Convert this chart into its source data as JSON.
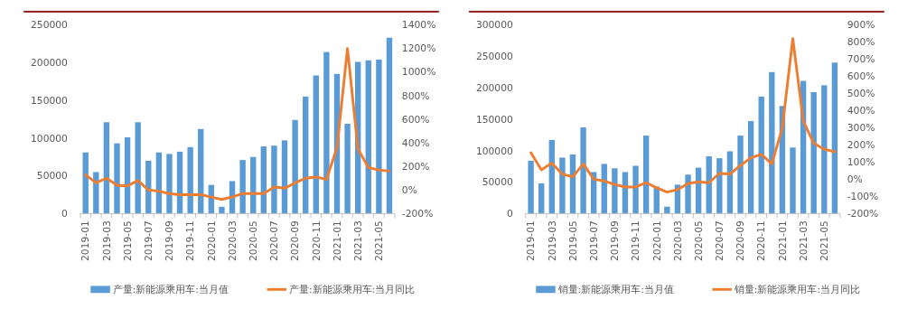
{
  "chart_data": [
    {
      "type": "bar",
      "categories": [
        "2019-01",
        null,
        "2019-03",
        null,
        "2019-05",
        null,
        "2019-07",
        null,
        "2019-09",
        null,
        "2019-11",
        null,
        "2020-01",
        null,
        "2020-03",
        null,
        "2020-05",
        null,
        "2020-07",
        null,
        "2020-09",
        null,
        "2020-11",
        null,
        "2021-01",
        null,
        "2021-03",
        null,
        "2021-05",
        null
      ],
      "series": [
        {
          "name": "产量:新能源乘用车:当月值",
          "color": "#5b9bd5",
          "values": [
            81000,
            55000,
            121000,
            93000,
            101000,
            121000,
            70000,
            81000,
            79000,
            82000,
            88000,
            112000,
            38000,
            9000,
            43000,
            71000,
            75000,
            89000,
            90000,
            97000,
            124000,
            155000,
            183000,
            214000,
            185000,
            119000,
            201000,
            203000,
            204000,
            233000
          ]
        },
        {
          "name": "产量:新能源乘用车:当月同比",
          "type": "line",
          "axis": "y2",
          "color": "#ed7d31",
          "values": [
            130,
            60,
            100,
            40,
            35,
            80,
            0,
            -10,
            -30,
            -40,
            -40,
            -40,
            -60,
            -80,
            -60,
            -30,
            -30,
            -30,
            25,
            15,
            60,
            100,
            110,
            90,
            360,
            1200,
            350,
            190,
            170,
            160
          ]
        }
      ],
      "ylim": [
        0,
        250000
      ],
      "yticks": [
        0,
        50000,
        100000,
        150000,
        200000,
        250000
      ],
      "y2lim": [
        -200,
        1400
      ],
      "y2ticks": [
        {
          "value": -200,
          "label": "-200%"
        },
        {
          "value": 0,
          "label": "0%"
        },
        {
          "value": 200,
          "label": "200%"
        },
        {
          "value": 400,
          "label": "400%"
        },
        {
          "value": 600,
          "label": "600%"
        },
        {
          "value": 800,
          "label": "800%"
        },
        {
          "value": 1000,
          "label": "1000%"
        },
        {
          "value": 1200,
          "label": "1200%"
        },
        {
          "value": 1400,
          "label": "1400%"
        }
      ],
      "legend": "bottom"
    },
    {
      "type": "bar",
      "categories": [
        "2019-01",
        null,
        "2019-03",
        null,
        "2019-05",
        null,
        "2019-07",
        null,
        "2019-09",
        null,
        "2019-11",
        null,
        "2020-01",
        null,
        "2020-03",
        null,
        "2020-05",
        null,
        "2020-07",
        null,
        "2020-09",
        null,
        "2020-11",
        null,
        "2021-01",
        null,
        "2021-03",
        null,
        "2021-05",
        null
      ],
      "series": [
        {
          "name": "销量:新能源乘用车:当月值",
          "color": "#5b9bd5",
          "values": [
            84000,
            48000,
            117000,
            89000,
            94000,
            137000,
            66000,
            79000,
            72000,
            66000,
            76000,
            124000,
            43000,
            11000,
            46000,
            62000,
            73000,
            91000,
            88000,
            99000,
            124000,
            147000,
            186000,
            225000,
            171000,
            105000,
            211000,
            193000,
            204000,
            240000
          ]
        },
        {
          "name": "销量:新能源乘用车:当月同比",
          "type": "line",
          "axis": "y2",
          "color": "#ed7d31",
          "values": [
            155,
            55,
            95,
            30,
            15,
            90,
            0,
            -10,
            -30,
            -45,
            -45,
            -20,
            -50,
            -75,
            -60,
            -25,
            -15,
            -20,
            35,
            30,
            80,
            125,
            145,
            90,
            300,
            820,
            340,
            210,
            175,
            160
          ]
        }
      ],
      "ylim": [
        0,
        300000
      ],
      "yticks": [
        0,
        50000,
        100000,
        150000,
        200000,
        250000,
        300000
      ],
      "y2lim": [
        -200,
        900
      ],
      "y2ticks": [
        {
          "value": -200,
          "label": "-200%"
        },
        {
          "value": -100,
          "label": "-100%"
        },
        {
          "value": 0,
          "label": "0%"
        },
        {
          "value": 100,
          "label": "100%"
        },
        {
          "value": 200,
          "label": "200%"
        },
        {
          "value": 300,
          "label": "300%"
        },
        {
          "value": 400,
          "label": "400%"
        },
        {
          "value": 500,
          "label": "500%"
        },
        {
          "value": 600,
          "label": "600%"
        },
        {
          "value": 700,
          "label": "700%"
        },
        {
          "value": 800,
          "label": "800%"
        },
        {
          "value": 900,
          "label": "900%"
        }
      ],
      "legend": "bottom"
    }
  ]
}
